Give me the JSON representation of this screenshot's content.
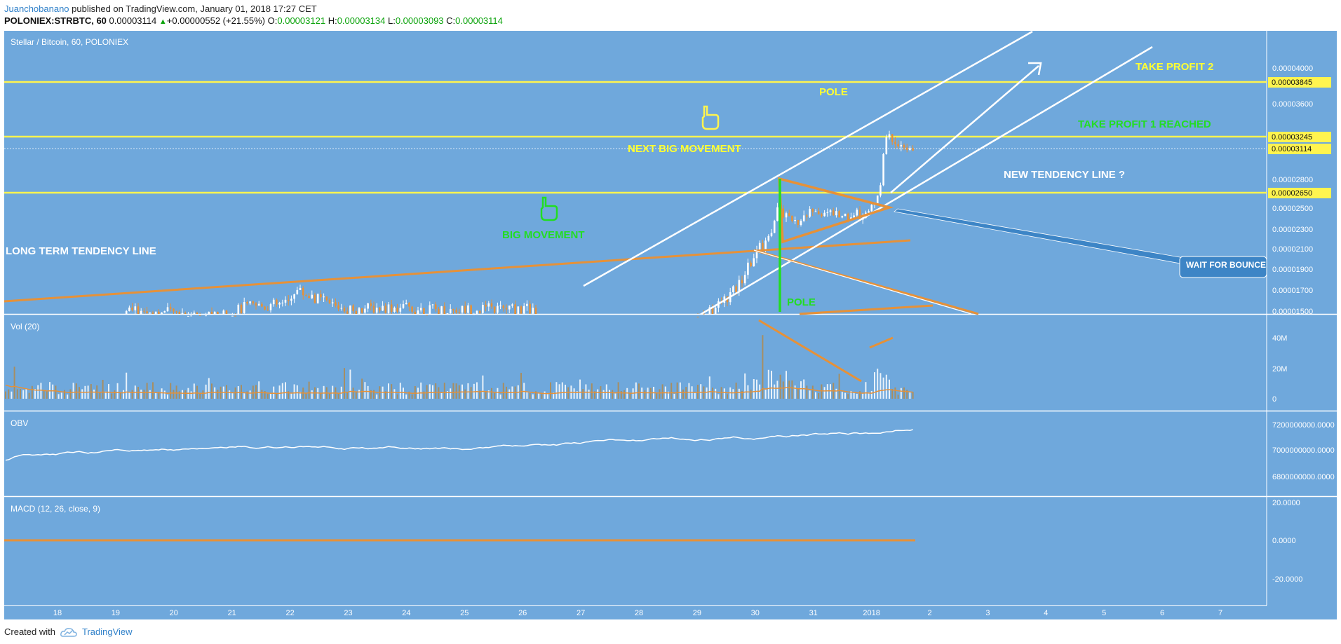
{
  "header": {
    "author": "Juanchobanano",
    "published": "published on TradingView.com, January 01, 2018 17:27 CET",
    "symbol": "POLONIEX:STRBTC, 60",
    "last": "0.00003114",
    "change_arrow": "▲",
    "change": "+0.00000552 (+21.55%)",
    "o_label": "O:",
    "o": "0.00003121",
    "h_label": "H:",
    "h": "0.00003134",
    "l_label": "L:",
    "l": "0.00003093",
    "c_label": "C:",
    "c": "0.00003114"
  },
  "footer": {
    "created": "Created with",
    "brand": "TradingView"
  },
  "colors": {
    "panel_bg": "#6fa8dc",
    "price_line": "#fff44f",
    "trend_orange": "#e69138",
    "trend_white": "#ffffff",
    "green_text": "#22dd22",
    "yellow_text": "#ffff33",
    "candle_up": "#ffffff",
    "candle_down": "#e69138"
  },
  "chart_data": {
    "type": "candlestick",
    "title": "Stellar / Bitcoin, 60, POLONIEX",
    "x_tick_labels": [
      "18",
      "19",
      "20",
      "21",
      "22",
      "23",
      "24",
      "25",
      "26",
      "27",
      "28",
      "29",
      "30",
      "31",
      "2018",
      "2",
      "3",
      "4",
      "5",
      "6",
      "7"
    ],
    "price_axis_ticks": [
      "0.00004000",
      "0.00003600",
      "0.00002800",
      "0.00002500",
      "0.00002300",
      "0.00002100",
      "0.00001900",
      "0.00001700",
      "0.00001500"
    ],
    "price_labels": {
      "level_38": "0.00003845",
      "level_32": "0.00003245",
      "current": "0.00003114",
      "level_26": "0.00002650"
    },
    "horizontal_levels": [
      3.845e-05,
      3.245e-05,
      2.65e-05
    ],
    "current_price": 3.114e-05,
    "panels": [
      {
        "name": "Vol (20)",
        "ticks": [
          "40M",
          "20M",
          "0"
        ]
      },
      {
        "name": "OBV",
        "ticks": [
          "7200000000.0000",
          "7000000000.0000",
          "6800000000.0000"
        ]
      },
      {
        "name": "MACD (12, 26, close, 9)",
        "ticks": [
          "20.0000",
          "0.0000",
          "-20.0000"
        ]
      }
    ],
    "annotations": {
      "take_profit_2": "TAKE PROFIT 2",
      "pole_top": "POLE",
      "take_profit_1": "TAKE PROFIT 1 REACHED",
      "next_big": "NEXT BIG MOVEMENT",
      "new_tendency": "NEW TENDENCY LINE ?",
      "big_movement": "BIG MOVEMENT",
      "long_term": "LONG TERM TENDENCY LINE",
      "wait_bounce": "WAIT FOR BOUNCE",
      "pole_bottom": "POLE"
    }
  }
}
